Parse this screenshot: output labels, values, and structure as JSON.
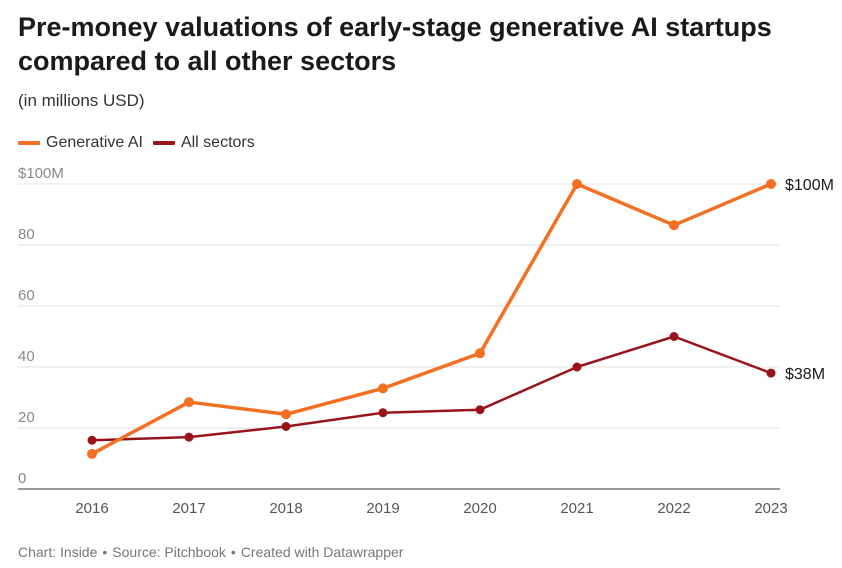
{
  "chart_data": {
    "type": "line",
    "title": "Pre-money valuations of early-stage generative AI startups compared to all other sectors",
    "subtitle": "(in millions USD)",
    "x": [
      "2016",
      "2017",
      "2018",
      "2019",
      "2020",
      "2021",
      "2022",
      "2023"
    ],
    "series": [
      {
        "name": "Generative AI",
        "color": "#f36f21",
        "values": [
          11.5,
          28.5,
          24.5,
          33,
          44.5,
          100,
          86.5,
          100
        ],
        "end_label": "$100M"
      },
      {
        "name": "All sectors",
        "color": "#99141a",
        "values": [
          16,
          17,
          20.5,
          25,
          26,
          40,
          50,
          38
        ],
        "end_label": "$38M"
      }
    ],
    "y_ticks": [
      {
        "value": 0,
        "label": "0"
      },
      {
        "value": 20,
        "label": "20"
      },
      {
        "value": 40,
        "label": "40"
      },
      {
        "value": 60,
        "label": "60"
      },
      {
        "value": 80,
        "label": "80"
      },
      {
        "value": 100,
        "label": "$100M"
      }
    ],
    "ylim": [
      0,
      100
    ],
    "xlabel": "",
    "ylabel": "",
    "grid": true,
    "legend": "top-left"
  },
  "footer": {
    "chart_by": "Chart: Inside",
    "source": "Source: Pitchbook",
    "created_with": "Created with Datawrapper",
    "separator": "•"
  }
}
